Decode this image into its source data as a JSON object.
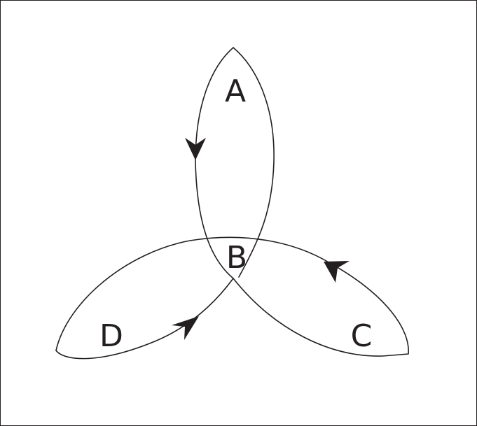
{
  "colors": {
    "stroke": "#231f20",
    "background": "#ffffff"
  },
  "labels": {
    "A": "A",
    "B": "B",
    "C": "C",
    "D": "D"
  },
  "arrows": [
    "arrow-left-lobe-down",
    "arrow-lower-left-lobe",
    "arrow-right-lobe"
  ]
}
